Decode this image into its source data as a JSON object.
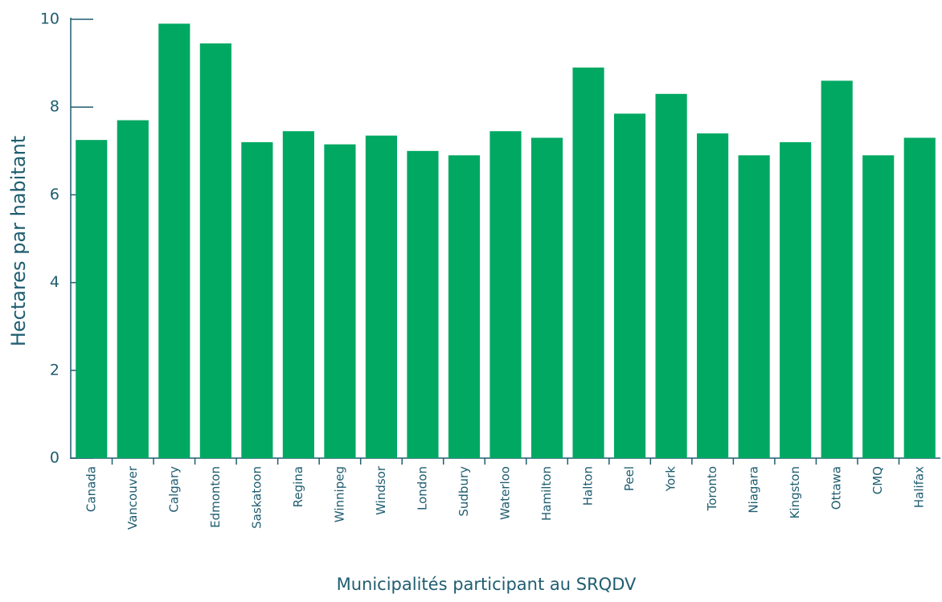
{
  "chart_data": {
    "type": "bar",
    "y_label": "Hectares par habitant",
    "x_label": "Municipalités participant au SRQDV",
    "categories": [
      "Canada",
      "Vancouver",
      "Calgary",
      "Edmonton",
      "Saskatoon",
      "Regina",
      "Winnipeg",
      "Windsor",
      "London",
      "Sudbury",
      "Waterloo",
      "Hamilton",
      "Halton",
      "Peel",
      "York",
      "Toronto",
      "Niagara",
      "Kingston",
      "Ottawa",
      "CMQ",
      "Halifax"
    ],
    "values": [
      7.25,
      7.7,
      9.9,
      9.45,
      7.2,
      7.45,
      7.15,
      7.35,
      7.0,
      6.9,
      7.45,
      7.3,
      8.9,
      7.85,
      8.3,
      7.4,
      6.9,
      7.2,
      8.6,
      6.9,
      7.3
    ],
    "color": "#00a862",
    "ylim": [
      0,
      10
    ],
    "yticks": [
      0,
      2,
      4,
      6,
      8,
      10
    ],
    "grid": false
  }
}
